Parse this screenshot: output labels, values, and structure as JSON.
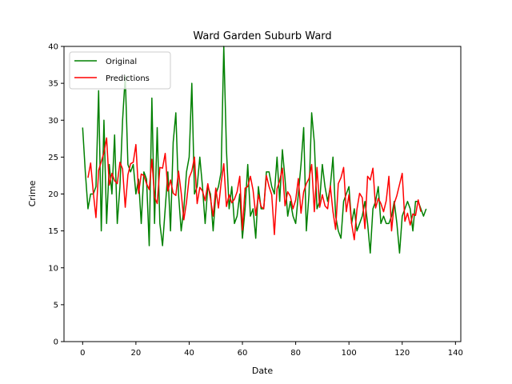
{
  "chart_data": {
    "type": "line",
    "title": "Ward Garden Suburb Ward",
    "xlabel": "Date",
    "ylabel": "Crime",
    "xlim": [
      -7,
      142
    ],
    "ylim": [
      0,
      40
    ],
    "xticks": [
      0,
      20,
      40,
      60,
      80,
      100,
      120,
      140
    ],
    "yticks": [
      0,
      5,
      10,
      15,
      20,
      25,
      30,
      35,
      40
    ],
    "legend_position": "top-left",
    "grid": false,
    "series": [
      {
        "name": "Original",
        "color": "#008000",
        "values": [
          29,
          23,
          18,
          20,
          20,
          21,
          34,
          15,
          30,
          16,
          24,
          20,
          28,
          16,
          21,
          30,
          36,
          24,
          23,
          24,
          20,
          22,
          16,
          23,
          22,
          13,
          33,
          16,
          29,
          16,
          13,
          18,
          23,
          15,
          27,
          31,
          20,
          15,
          18,
          23,
          25,
          35,
          20,
          21,
          25,
          21,
          16,
          21,
          20,
          15,
          20,
          21,
          23,
          40,
          26,
          18,
          21,
          16,
          17,
          20,
          14,
          18,
          24,
          17,
          18,
          14,
          21,
          18,
          18,
          23,
          23,
          21,
          20,
          25,
          19,
          26,
          22,
          17,
          19,
          17,
          16,
          20,
          24,
          29,
          15,
          20,
          31,
          27,
          18,
          19,
          24,
          21,
          19,
          21,
          25,
          17,
          15,
          14,
          19,
          20,
          21,
          16,
          18,
          15,
          16,
          17,
          19,
          16,
          12,
          18,
          19,
          21,
          16,
          17,
          16,
          16,
          17,
          19,
          16,
          12,
          17,
          18,
          19,
          18,
          15,
          19,
          19,
          18,
          17,
          18
        ],
        "x_start": 0
      },
      {
        "name": "Predictions",
        "color": "#ff0000",
        "values": [
          22.2,
          24.2,
          20.2,
          16.8,
          23.2,
          24.4,
          25.6,
          27.6,
          21.2,
          22.8,
          21.8,
          21.4,
          24.3,
          23.4,
          18.2,
          22.6,
          24.1,
          24.3,
          26.7,
          20.1,
          22.7,
          22.5,
          21.4,
          20.6,
          24.7,
          19.6,
          18.7,
          23.6,
          23.5,
          25.5,
          20.4,
          21.9,
          20.1,
          19.8,
          23.1,
          20.2,
          16.5,
          18.9,
          22.2,
          23.1,
          25.0,
          18.7,
          20.9,
          20.4,
          19.1,
          21.4,
          19.4,
          17.0,
          20.8,
          18.1,
          21.5,
          24.1,
          18.3,
          19.9,
          18.8,
          19.3,
          20.3,
          22.4,
          15.1,
          20.8,
          21.0,
          22.4,
          20.5,
          17.1,
          19.9,
          18.3,
          18.0,
          22.5,
          21.0,
          19.9,
          14.5,
          20.7,
          21.8,
          23.5,
          18.4,
          20.3,
          19.7,
          18.0,
          19.2,
          22.1,
          17.4,
          20.3,
          21.4,
          22.1,
          24.0,
          17.6,
          23.6,
          18.2,
          19.9,
          18.4,
          18.0,
          21.1,
          17.6,
          15.2,
          21.4,
          22.2,
          23.6,
          17.6,
          19.9,
          16.0,
          13.8,
          17.9,
          20.1,
          19.5,
          15.3,
          22.4,
          21.9,
          23.5,
          18.1,
          19.4,
          18.7,
          17.6,
          19.1,
          22.4,
          15.0,
          18.7,
          19.8,
          21.3,
          22.8,
          16.3,
          17.4,
          15.8,
          17.3,
          17.1,
          19.2,
          17.6
        ],
        "x_start": 2
      }
    ]
  }
}
